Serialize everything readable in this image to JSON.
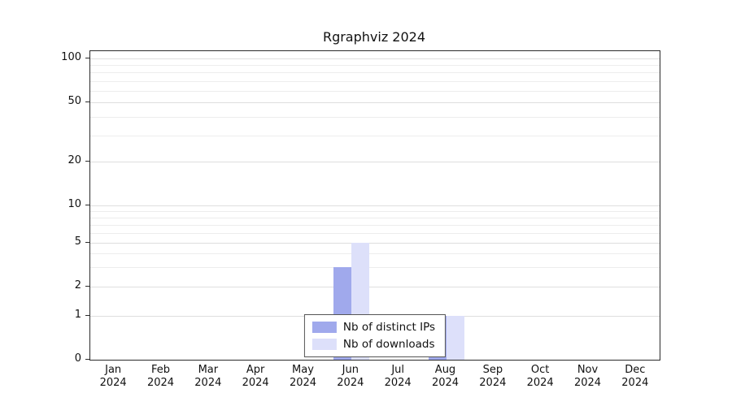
{
  "title": "Rgraphviz 2024",
  "chart_data": {
    "type": "bar",
    "title": "Rgraphviz 2024",
    "categories": [
      "Jan 2024",
      "Feb 2024",
      "Mar 2024",
      "Apr 2024",
      "May 2024",
      "Jun 2024",
      "Jul 2024",
      "Aug 2024",
      "Sep 2024",
      "Oct 2024",
      "Nov 2024",
      "Dec 2024"
    ],
    "series": [
      {
        "name": "Nb of distinct IPs",
        "color": "#a0a9ec",
        "values": [
          0,
          0,
          0,
          0,
          0,
          3,
          0,
          1,
          0,
          0,
          0,
          0
        ]
      },
      {
        "name": "Nb of downloads",
        "color": "#dde0fa",
        "values": [
          0,
          0,
          0,
          0,
          0,
          5,
          0,
          1,
          0,
          0,
          0,
          0
        ]
      }
    ],
    "y_scale": "log-with-zero-baseline",
    "y_ticks": [
      0,
      1,
      2,
      5,
      10,
      20,
      50,
      100
    ],
    "y_minor_ticks": [
      3,
      4,
      6,
      7,
      8,
      9,
      30,
      40,
      60,
      70,
      80,
      90
    ],
    "ylim": [
      0,
      100
    ],
    "grid": true,
    "legend_position": "bottom-center"
  }
}
